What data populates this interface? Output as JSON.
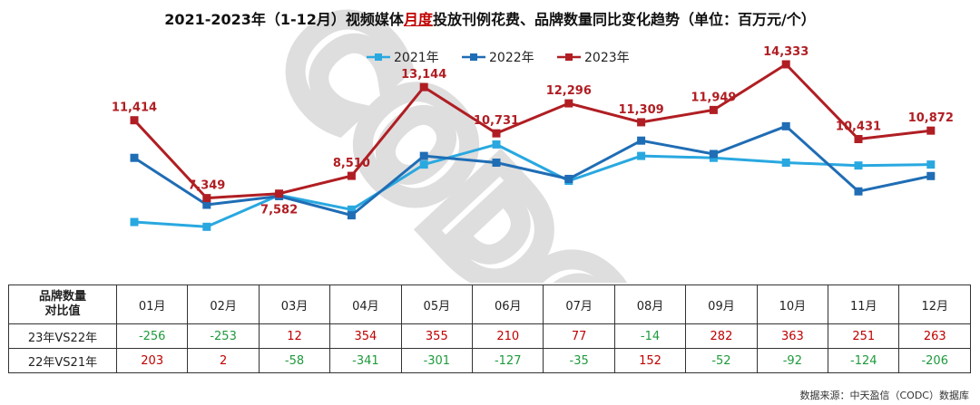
{
  "title_parts": {
    "before": "2021-2023年（1-12月）视频媒体",
    "highlight": "月度",
    "after": "投放刊例花费、品牌数量同比变化趋势（单位：百万元/个）"
  },
  "watermark": "CODC",
  "colors": {
    "y2021": "#29a8e0",
    "y2022": "#1f6db5",
    "y2023": "#b01e23",
    "positive": "#c00000",
    "negative": "#1e9a3c"
  },
  "chart_data": {
    "type": "line",
    "categories": [
      "01月",
      "02月",
      "03月",
      "04月",
      "05月",
      "06月",
      "07月",
      "08月",
      "09月",
      "10月",
      "11月",
      "12月"
    ],
    "series": [
      {
        "name": "2021年",
        "values": [
          6100,
          5850,
          7500,
          6750,
          9100,
          10150,
          8250,
          9550,
          9450,
          9200,
          9050,
          9100
        ]
      },
      {
        "name": "2022年",
        "values": [
          9450,
          7000,
          7450,
          6450,
          9550,
          9200,
          8350,
          10350,
          9650,
          11100,
          7700,
          8500
        ]
      },
      {
        "name": "2023年",
        "values": [
          11414,
          7349,
          7582,
          8510,
          13144,
          10731,
          12296,
          11309,
          11949,
          14333,
          10431,
          10872
        ]
      }
    ],
    "data_labels": {
      "series": "2023年",
      "texts": [
        "11,414",
        "7,349",
        "7,582",
        "8,510",
        "13,144",
        "10,731",
        "12,296",
        "11,309",
        "11,949",
        "14,333",
        "10,431",
        "10,872"
      ]
    },
    "ylim": [
      3500,
      15800
    ],
    "legend_position": "top-center",
    "grid": false
  },
  "table": {
    "corner_label": "品牌数量\n对比值",
    "months": [
      "01月",
      "02月",
      "03月",
      "04月",
      "05月",
      "06月",
      "07月",
      "08月",
      "09月",
      "10月",
      "11月",
      "12月"
    ],
    "rows": [
      {
        "label": "23年VS22年",
        "values": [
          -256,
          -253,
          12,
          354,
          355,
          210,
          77,
          -14,
          282,
          363,
          251,
          263
        ]
      },
      {
        "label": "22年VS21年",
        "values": [
          203,
          2,
          -58,
          -341,
          -301,
          -127,
          -35,
          152,
          -52,
          -92,
          -124,
          -206
        ]
      }
    ]
  },
  "source": "数据来源：中天盈信（CODC）数据库"
}
